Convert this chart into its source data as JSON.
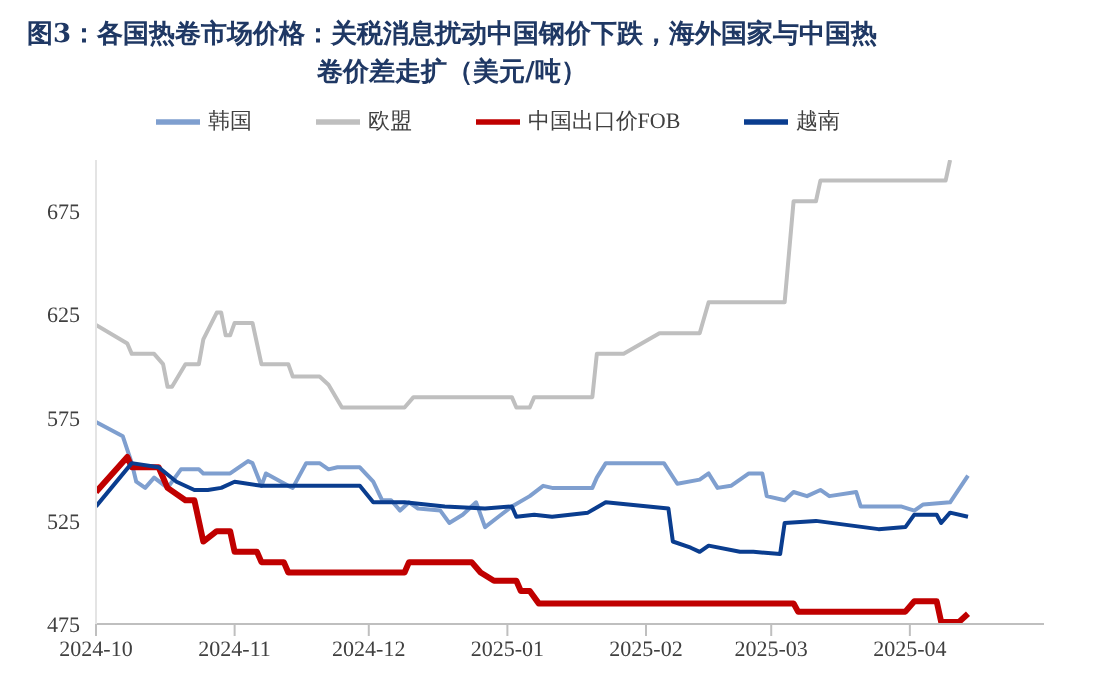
{
  "chart_data": {
    "type": "line",
    "title": "图3：各国热卷市场价格：关税消息扰动中国钢价下跌，海外国家与中国热卷价差走扩（美元/吨）",
    "legend": "top",
    "grid": false,
    "marker": "none",
    "line_style": "solid",
    "xlim": [
      "2024-10",
      "2025-05"
    ],
    "xticks": [
      "2024-10",
      "2024-11",
      "2024-12",
      "2025-01",
      "2025-02",
      "2025-03",
      "2025-04"
    ],
    "ylim": [
      475,
      700
    ],
    "yticks": [
      475,
      525,
      575,
      625,
      675
    ],
    "series": [
      {
        "name": "韩国",
        "color": "#7f9fcf",
        "x": [
          "2024-10-01",
          "2024-10-07",
          "2024-10-09",
          "2024-10-10",
          "2024-10-12",
          "2024-10-14",
          "2024-10-17",
          "2024-10-20",
          "2024-10-24",
          "2024-10-25",
          "2024-10-31",
          "2024-11-04",
          "2024-11-05",
          "2024-11-07",
          "2024-11-08",
          "2024-11-13",
          "2024-11-14",
          "2024-11-17",
          "2024-11-20",
          "2024-11-22",
          "2024-11-24",
          "2024-11-29",
          "2024-12-02",
          "2024-12-04",
          "2024-12-06",
          "2024-12-08",
          "2024-12-10",
          "2024-12-12",
          "2024-12-17",
          "2024-12-19",
          "2024-12-22",
          "2024-12-25",
          "2024-12-27",
          "2024-12-30",
          "2025-01-02",
          "2025-01-06",
          "2025-01-09",
          "2025-01-11",
          "2025-01-20",
          "2025-01-21",
          "2025-01-23",
          "2025-02-05",
          "2025-02-08",
          "2025-02-13",
          "2025-02-15",
          "2025-02-17",
          "2025-02-20",
          "2025-02-24",
          "2025-02-27",
          "2025-02-28",
          "2025-03-04",
          "2025-03-06",
          "2025-03-09",
          "2025-03-12",
          "2025-03-14",
          "2025-03-20",
          "2025-03-21",
          "2025-03-30",
          "2025-04-02",
          "2025-04-04",
          "2025-04-10",
          "2025-04-14"
        ],
        "values": [
          573,
          566,
          553,
          544,
          541,
          546,
          541,
          550,
          550,
          548,
          548,
          554,
          553,
          542,
          548,
          542,
          541,
          553,
          553,
          550,
          551,
          551,
          544,
          535,
          535,
          530,
          534,
          531,
          530,
          524,
          528,
          534,
          522,
          527,
          532,
          537,
          542,
          541,
          541,
          546,
          553,
          553,
          543,
          545,
          548,
          541,
          542,
          548,
          548,
          537,
          535,
          539,
          537,
          540,
          537,
          539,
          532,
          532,
          530,
          533,
          534,
          547
        ]
      },
      {
        "name": "欧盟",
        "color": "#bfbfbf",
        "x": [
          "2024-10-01",
          "2024-10-08",
          "2024-10-09",
          "2024-10-14",
          "2024-10-16",
          "2024-10-17",
          "2024-10-18",
          "2024-10-21",
          "2024-10-24",
          "2024-10-25",
          "2024-10-28",
          "2024-10-29",
          "2024-10-30",
          "2024-10-31",
          "2024-11-01",
          "2024-11-05",
          "2024-11-07",
          "2024-11-13",
          "2024-11-14",
          "2024-11-20",
          "2024-11-22",
          "2024-11-25",
          "2024-12-09",
          "2024-12-11",
          "2025-01-02",
          "2025-01-03",
          "2025-01-06",
          "2025-01-07",
          "2025-01-20",
          "2025-01-21",
          "2025-01-27",
          "2025-02-04",
          "2025-02-13",
          "2025-02-15",
          "2025-03-04",
          "2025-03-06",
          "2025-03-11",
          "2025-03-12",
          "2025-04-09",
          "2025-04-10"
        ],
        "values": [
          620,
          611,
          606,
          606,
          601,
          590,
          590,
          601,
          601,
          613,
          626,
          626,
          615,
          615,
          621,
          621,
          601,
          601,
          595,
          595,
          591,
          580,
          580,
          585,
          585,
          580,
          580,
          585,
          585,
          606,
          606,
          616,
          616,
          631,
          631,
          680,
          680,
          690,
          690,
          700
        ]
      },
      {
        "name": "中国出口价FOB",
        "color": "#c00000",
        "x": [
          "2024-10-01",
          "2024-10-08",
          "2024-10-09",
          "2024-10-15",
          "2024-10-17",
          "2024-10-21",
          "2024-10-23",
          "2024-10-25",
          "2024-10-28",
          "2024-10-31",
          "2024-11-01",
          "2024-11-06",
          "2024-11-07",
          "2024-11-12",
          "2024-11-13",
          "2024-12-09",
          "2024-12-10",
          "2024-12-24",
          "2024-12-26",
          "2024-12-29",
          "2025-01-03",
          "2025-01-04",
          "2025-01-06",
          "2025-01-08",
          "2025-03-06",
          "2025-03-07",
          "2025-03-31",
          "2025-04-02",
          "2025-04-07",
          "2025-04-08",
          "2025-04-12",
          "2025-04-14"
        ],
        "values": [
          539,
          556,
          551,
          551,
          541,
          535,
          535,
          515,
          520,
          520,
          510,
          510,
          505,
          505,
          500,
          500,
          505,
          505,
          500,
          496,
          496,
          491,
          491,
          485,
          485,
          481,
          481,
          486,
          486,
          476,
          476,
          480
        ]
      },
      {
        "name": "越南",
        "color": "#0a3d8f",
        "x": [
          "2024-10-01",
          "2024-10-09",
          "2024-10-15",
          "2024-10-19",
          "2024-10-23",
          "2024-10-26",
          "2024-10-29",
          "2024-11-01",
          "2024-11-07",
          "2024-11-13",
          "2024-11-29",
          "2024-12-02",
          "2024-12-09",
          "2024-12-18",
          "2024-12-27",
          "2025-01-02",
          "2025-01-03",
          "2025-01-07",
          "2025-01-11",
          "2025-01-19",
          "2025-01-23",
          "2025-02-06",
          "2025-02-07",
          "2025-02-11",
          "2025-02-13",
          "2025-02-15",
          "2025-02-22",
          "2025-02-25",
          "2025-03-03",
          "2025-03-04",
          "2025-03-11",
          "2025-03-25",
          "2025-03-31",
          "2025-04-02",
          "2025-04-07",
          "2025-04-08",
          "2025-04-10",
          "2025-04-14"
        ],
        "values": [
          532,
          553,
          551,
          544,
          540,
          540,
          541,
          544,
          542,
          542,
          542,
          534,
          534,
          532,
          531,
          532,
          527,
          528,
          527,
          529,
          534,
          531,
          515,
          512,
          510,
          513,
          510,
          510,
          509,
          524,
          525,
          521,
          522,
          528,
          528,
          524,
          529,
          527
        ]
      }
    ]
  }
}
